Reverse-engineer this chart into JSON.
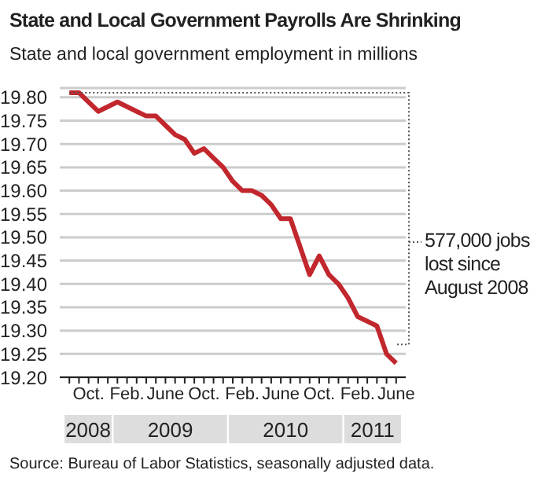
{
  "chart_data": {
    "type": "line",
    "title": "State and Local Government Payrolls Are Shrinking",
    "subtitle": "State and local government employment in millions",
    "x": [
      "2008-08",
      "2008-09",
      "2008-10",
      "2008-11",
      "2008-12",
      "2009-01",
      "2009-02",
      "2009-03",
      "2009-04",
      "2009-05",
      "2009-06",
      "2009-07",
      "2009-08",
      "2009-09",
      "2009-10",
      "2009-11",
      "2009-12",
      "2010-01",
      "2010-02",
      "2010-03",
      "2010-04",
      "2010-05",
      "2010-06",
      "2010-07",
      "2010-08",
      "2010-09",
      "2010-10",
      "2010-11",
      "2010-12",
      "2011-01",
      "2011-02",
      "2011-03",
      "2011-04",
      "2011-05",
      "2011-06"
    ],
    "series": [
      {
        "color": "#c1272d",
        "values": [
          19.81,
          19.81,
          19.79,
          19.77,
          19.78,
          19.79,
          19.78,
          19.77,
          19.76,
          19.76,
          19.74,
          19.72,
          19.71,
          19.68,
          19.69,
          19.67,
          19.65,
          19.62,
          19.6,
          19.6,
          19.59,
          19.57,
          19.54,
          19.54,
          19.48,
          19.42,
          19.46,
          19.42,
          19.4,
          19.37,
          19.33,
          19.32,
          19.31,
          19.25,
          19.23
        ]
      }
    ],
    "xlim": [
      "2008-07",
      "2011-07"
    ],
    "xticks": [
      {
        "value": "2008-08",
        "label": null
      },
      {
        "value": "2008-09",
        "label": null
      },
      {
        "value": "2008-10",
        "label": "Oct."
      },
      {
        "value": "2008-11",
        "label": null
      },
      {
        "value": "2008-12",
        "label": null
      },
      {
        "value": "2009-01",
        "label": null
      },
      {
        "value": "2009-02",
        "label": "Feb."
      },
      {
        "value": "2009-03",
        "label": null
      },
      {
        "value": "2009-04",
        "label": null
      },
      {
        "value": "2009-05",
        "label": null
      },
      {
        "value": "2009-06",
        "label": "June"
      },
      {
        "value": "2009-07",
        "label": null
      },
      {
        "value": "2009-08",
        "label": null
      },
      {
        "value": "2009-09",
        "label": null
      },
      {
        "value": "2009-10",
        "label": "Oct."
      },
      {
        "value": "2009-11",
        "label": null
      },
      {
        "value": "2009-12",
        "label": null
      },
      {
        "value": "2010-01",
        "label": null
      },
      {
        "value": "2010-02",
        "label": "Feb."
      },
      {
        "value": "2010-03",
        "label": null
      },
      {
        "value": "2010-04",
        "label": null
      },
      {
        "value": "2010-05",
        "label": null
      },
      {
        "value": "2010-06",
        "label": "June"
      },
      {
        "value": "2010-07",
        "label": null
      },
      {
        "value": "2010-08",
        "label": null
      },
      {
        "value": "2010-09",
        "label": null
      },
      {
        "value": "2010-10",
        "label": "Oct."
      },
      {
        "value": "2010-11",
        "label": null
      },
      {
        "value": "2010-12",
        "label": null
      },
      {
        "value": "2011-01",
        "label": null
      },
      {
        "value": "2011-02",
        "label": "Feb."
      },
      {
        "value": "2011-03",
        "label": null
      },
      {
        "value": "2011-04",
        "label": null
      },
      {
        "value": "2011-05",
        "label": null
      },
      {
        "value": "2011-06",
        "label": "June"
      }
    ],
    "ylim": [
      19.2,
      19.82
    ],
    "yticks": [
      {
        "value": 19.2,
        "label": "19.20"
      },
      {
        "value": 19.25,
        "label": "19.25"
      },
      {
        "value": 19.3,
        "label": "19.30"
      },
      {
        "value": 19.35,
        "label": "19.35"
      },
      {
        "value": 19.4,
        "label": "19.40"
      },
      {
        "value": 19.45,
        "label": "19.45"
      },
      {
        "value": 19.5,
        "label": "19.50"
      },
      {
        "value": 19.55,
        "label": "19.55"
      },
      {
        "value": 19.6,
        "label": "19.60"
      },
      {
        "value": 19.65,
        "label": "19.65"
      },
      {
        "value": 19.7,
        "label": "19.70"
      },
      {
        "value": 19.75,
        "label": "19.75"
      },
      {
        "value": 19.8,
        "label": "19.80"
      }
    ],
    "grid": "y",
    "legend": false,
    "marker": "none",
    "line_style": "solid",
    "annotations": [
      "2008",
      "2009",
      "2010",
      "2011",
      "577,000 jobs lost since August 2008",
      "Source: Bureau of Labor Statistics, seasonally adjusted data."
    ]
  }
}
